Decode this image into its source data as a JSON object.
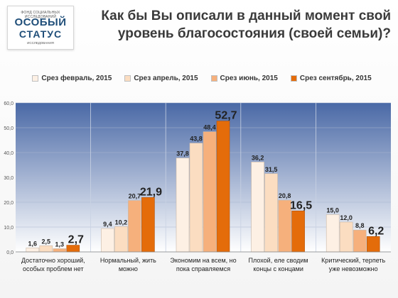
{
  "logo": {
    "top_text": "ФОНД СОЦИАЛЬНЫХ ИССЛЕДОВАНИЙ",
    "line1": "ОСОБЫЙ",
    "line2": "СТАТУС",
    "bottom_text": "ИССЛЕДОВАНИЯ"
  },
  "title": {
    "line1": "Как бы Вы описали в данный момент свой",
    "line2": "уровень благосостояния  (своей семьи)?"
  },
  "chart_data": {
    "type": "bar",
    "title": "Как бы Вы описали в данный момент свой уровень благосостояния  (своей семьи)?",
    "categories": [
      [
        "Достаточно хороший,",
        "особых проблем нет"
      ],
      [
        "Нормальный, жить",
        "можно"
      ],
      [
        "Экономим на всем, но",
        "пока справляемся"
      ],
      [
        "Плохой, еле сводим",
        "концы с концами"
      ],
      [
        "Критический, терпеть",
        "уже невозможно"
      ]
    ],
    "series": [
      {
        "name": "Срез февраль,  2015",
        "color": "#fdf0e4",
        "values": [
          1.6,
          9.4,
          37.8,
          36.2,
          15.0
        ]
      },
      {
        "name": "Срез апрель,  2015",
        "color": "#fbddc1",
        "values": [
          2.5,
          10.2,
          43.8,
          31.5,
          12.0
        ]
      },
      {
        "name": "Срез июнь,  2015",
        "color": "#f6b07c",
        "values": [
          1.3,
          20.7,
          48.4,
          20.8,
          8.8
        ]
      },
      {
        "name": "Срез сентябрь,  2015",
        "color": "#e46c0a",
        "values": [
          2.7,
          21.9,
          52.7,
          16.5,
          6.2
        ]
      }
    ],
    "value_labels": [
      [
        "1,6",
        "9,4",
        "37,8",
        "36,2",
        "15,0"
      ],
      [
        "2,5",
        "10,2",
        "43,8",
        "31,5",
        "12,0"
      ],
      [
        "1,3",
        "20,7",
        "48,4",
        "20,8",
        "8,8"
      ],
      [
        "2,7",
        "21,9",
        "52,7",
        "16,5",
        "6,2"
      ]
    ],
    "y_ticks": [
      "0,0",
      "10,0",
      "20,0",
      "30,0",
      "40,0",
      "50,0",
      "60,0"
    ],
    "ylim": [
      0,
      60
    ],
    "grid": true,
    "legend_position": "top",
    "plot_background": [
      "#4a69a6",
      "#ffffff"
    ]
  }
}
